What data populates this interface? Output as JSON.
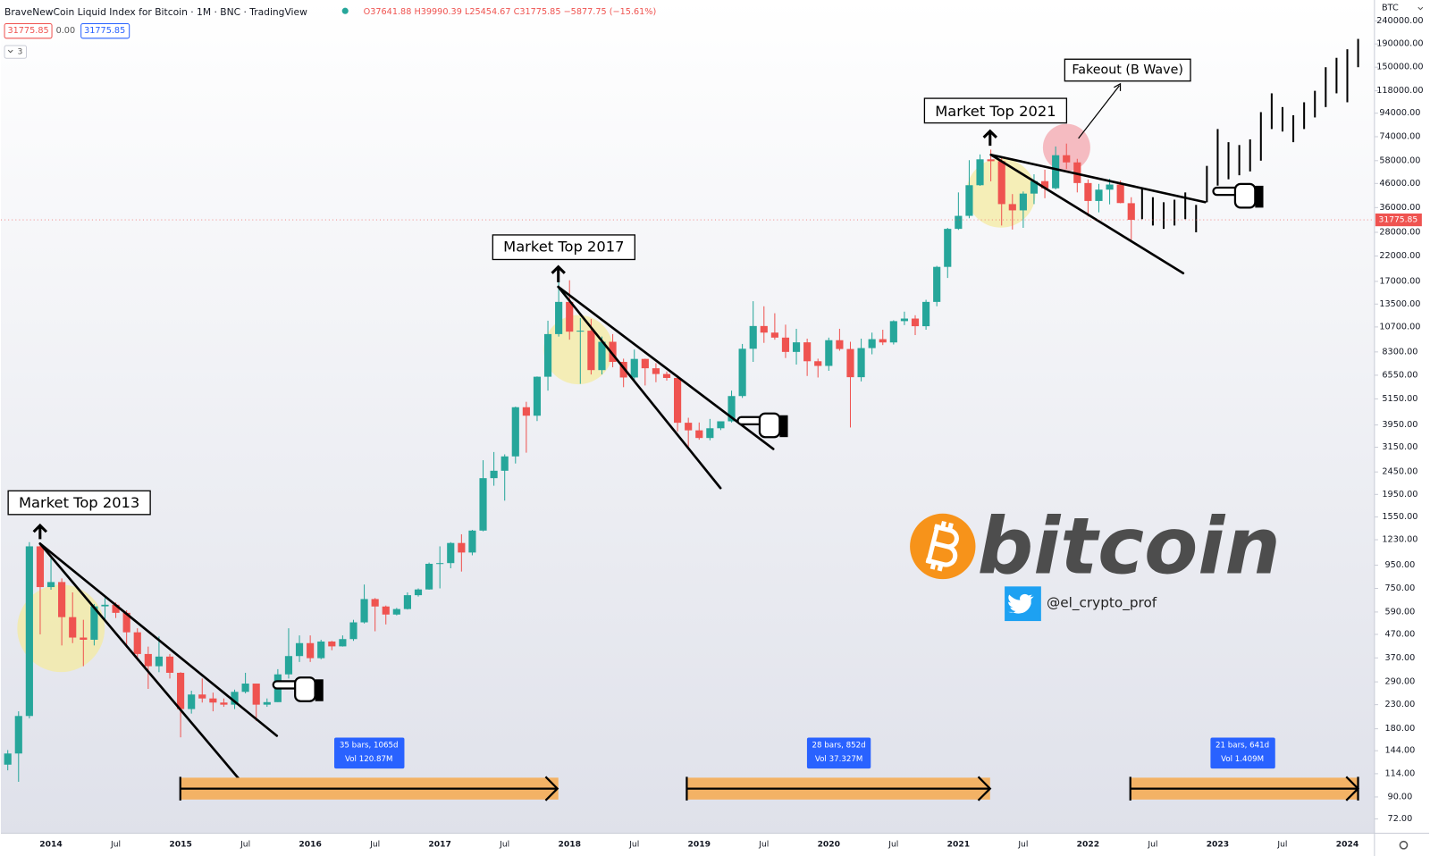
{
  "header": {
    "title": "BraveNewCoin Liquid Index for Bitcoin · 1M · BNC · TradingView",
    "open": "O37641.88",
    "high": "H39990.39",
    "low": "L25454.67",
    "close": "C31775.85",
    "change": "−5877.75 (−15.61%)"
  },
  "toolbar": {
    "bid": "31775.85",
    "spread": "0.00",
    "ask": "31775.85",
    "indicators": "3"
  },
  "overlay": {
    "brand": "bitcoin",
    "handle": "@el_crypto_prof"
  },
  "chart_data": {
    "type": "candlestick",
    "currency": "BTC",
    "last_price": 31775.85,
    "log_scale": true,
    "grid": false,
    "up_color": "#26a69a",
    "down_color": "#ef5350",
    "projection_color": "#000000",
    "annotations": [
      "Market Top 2013",
      "Market Top 2017",
      "Market Top 2021",
      "Fakeout (B Wave)"
    ],
    "ranges": [
      {
        "label": "35 bars, 1065d",
        "volume": "Vol 120.87M"
      },
      {
        "label": "28 bars, 852d",
        "volume": "Vol 37.327M"
      },
      {
        "label": "21 bars, 641d",
        "volume": "Vol 1.409M"
      }
    ],
    "categories": [
      null,
      null,
      null,
      null,
      "2014",
      null,
      null,
      null,
      null,
      null,
      "Jul",
      null,
      null,
      null,
      null,
      null,
      "2015",
      null,
      null,
      null,
      null,
      null,
      "Jul",
      null,
      null,
      null,
      null,
      null,
      "2016",
      null,
      null,
      null,
      null,
      null,
      "Jul",
      null,
      null,
      null,
      null,
      null,
      "2017",
      null,
      null,
      null,
      null,
      null,
      "Jul",
      null,
      null,
      null,
      null,
      null,
      "2018",
      null,
      null,
      null,
      null,
      null,
      "Jul",
      null,
      null,
      null,
      null,
      null,
      "2019",
      null,
      null,
      null,
      null,
      null,
      "Jul",
      null,
      null,
      null,
      null,
      null,
      "2020",
      null,
      null,
      null,
      null,
      null,
      "Jul",
      null,
      null,
      null,
      null,
      null,
      "2021",
      null,
      null,
      null,
      null,
      null,
      "Jul",
      null,
      null,
      null,
      null,
      null,
      "2022",
      null,
      null,
      null,
      null,
      null,
      "Jul",
      null,
      null,
      null,
      null,
      null,
      "2023",
      null,
      null,
      null,
      null,
      null,
      "Jul",
      null,
      null,
      null,
      null,
      null,
      "2024",
      null,
      null
    ],
    "ohlc": [
      [
        125,
        145,
        118,
        140
      ],
      [
        140,
        215,
        105,
        205
      ],
      [
        205,
        1200,
        200,
        1150
      ],
      [
        1150,
        1180,
        470,
        760
      ],
      [
        760,
        1020,
        740,
        800
      ],
      [
        800,
        830,
        420,
        560
      ],
      [
        560,
        720,
        430,
        455
      ],
      [
        455,
        545,
        340,
        445
      ],
      [
        445,
        640,
        420,
        625
      ],
      [
        625,
        680,
        540,
        635
      ],
      [
        635,
        650,
        555,
        585
      ],
      [
        585,
        600,
        410,
        480
      ],
      [
        480,
        500,
        360,
        385
      ],
      [
        385,
        415,
        270,
        340
      ],
      [
        340,
        460,
        320,
        375
      ],
      [
        375,
        385,
        300,
        318
      ],
      [
        318,
        320,
        165,
        220
      ],
      [
        220,
        265,
        210,
        255
      ],
      [
        255,
        300,
        235,
        245
      ],
      [
        245,
        260,
        215,
        235
      ],
      [
        235,
        245,
        225,
        230
      ],
      [
        230,
        268,
        220,
        262
      ],
      [
        262,
        318,
        258,
        285
      ],
      [
        285,
        285,
        195,
        230
      ],
      [
        230,
        245,
        225,
        236
      ],
      [
        236,
        330,
        236,
        313
      ],
      [
        313,
        500,
        300,
        377
      ],
      [
        377,
        465,
        355,
        430
      ],
      [
        430,
        465,
        355,
        369
      ],
      [
        369,
        445,
        365,
        437
      ],
      [
        437,
        440,
        400,
        416
      ],
      [
        416,
        465,
        415,
        448
      ],
      [
        448,
        545,
        440,
        531
      ],
      [
        531,
        780,
        525,
        673
      ],
      [
        673,
        680,
        485,
        624
      ],
      [
        624,
        630,
        520,
        575
      ],
      [
        575,
        615,
        570,
        608
      ],
      [
        608,
        720,
        605,
        700
      ],
      [
        700,
        750,
        690,
        742
      ],
      [
        742,
        975,
        740,
        963
      ],
      [
        963,
        1150,
        750,
        970
      ],
      [
        970,
        1200,
        920,
        1190
      ],
      [
        1190,
        1300,
        890,
        1080
      ],
      [
        1080,
        1360,
        1050,
        1350
      ],
      [
        1350,
        2760,
        1340,
        2300
      ],
      [
        2300,
        3000,
        2130,
        2480
      ],
      [
        2480,
        2930,
        1830,
        2870
      ],
      [
        2870,
        4760,
        2670,
        4730
      ],
      [
        4730,
        5000,
        2980,
        4340
      ],
      [
        4340,
        6470,
        4110,
        6450
      ],
      [
        6450,
        11400,
        5600,
        9950
      ],
      [
        9950,
        19800,
        9700,
        13800
      ],
      [
        13800,
        17200,
        9400,
        10200
      ],
      [
        10200,
        11700,
        6000,
        10300
      ],
      [
        10300,
        11600,
        6600,
        6900
      ],
      [
        6900,
        9700,
        6600,
        9200
      ],
      [
        9200,
        9950,
        7100,
        7500
      ],
      [
        7500,
        7750,
        5800,
        6400
      ],
      [
        6400,
        8500,
        6100,
        7730
      ],
      [
        7730,
        7750,
        5900,
        7030
      ],
      [
        7030,
        7400,
        6100,
        6630
      ],
      [
        6630,
        6800,
        6200,
        6370
      ],
      [
        6370,
        6550,
        3700,
        4040
      ],
      [
        4040,
        4250,
        3150,
        3740
      ],
      [
        3740,
        4050,
        3400,
        3460
      ],
      [
        3460,
        4200,
        3380,
        3820
      ],
      [
        3820,
        4100,
        3750,
        4100
      ],
      [
        4100,
        5600,
        4050,
        5300
      ],
      [
        5300,
        9000,
        5200,
        8570
      ],
      [
        8570,
        13900,
        7500,
        10800
      ],
      [
        10800,
        13200,
        9100,
        10100
      ],
      [
        10100,
        12300,
        9400,
        9600
      ],
      [
        9600,
        10950,
        7800,
        8300
      ],
      [
        8300,
        10500,
        7300,
        9150
      ],
      [
        9150,
        9500,
        6500,
        7550
      ],
      [
        7550,
        7750,
        6400,
        7200
      ],
      [
        7200,
        9600,
        6850,
        9350
      ],
      [
        9350,
        10500,
        8400,
        8550
      ],
      [
        8550,
        9200,
        3850,
        6420
      ],
      [
        6420,
        9500,
        6150,
        8630
      ],
      [
        8630,
        10100,
        8100,
        9450
      ],
      [
        9450,
        10400,
        8900,
        9140
      ],
      [
        9140,
        11450,
        8950,
        11350
      ],
      [
        11350,
        12500,
        10900,
        11650
      ],
      [
        11650,
        12050,
        9850,
        10780
      ],
      [
        10780,
        14100,
        10400,
        13800
      ],
      [
        13800,
        19900,
        13200,
        19700
      ],
      [
        19700,
        29300,
        17600,
        29000
      ],
      [
        29000,
        42000,
        28700,
        33100
      ],
      [
        33100,
        58300,
        32300,
        45200
      ],
      [
        45200,
        61800,
        44900,
        58800
      ],
      [
        58800,
        64900,
        47000,
        57700
      ],
      [
        57700,
        59600,
        30000,
        37300
      ],
      [
        37300,
        41300,
        28800,
        35000
      ],
      [
        35000,
        42400,
        29300,
        41500
      ],
      [
        41500,
        50500,
        37300,
        47100
      ],
      [
        47100,
        52900,
        39600,
        43800
      ],
      [
        43800,
        67000,
        43300,
        61300
      ],
      [
        61300,
        69000,
        53300,
        57000
      ],
      [
        57000,
        59100,
        42000,
        46200
      ],
      [
        46200,
        47900,
        32900,
        38500
      ],
      [
        38500,
        45800,
        34300,
        43200
      ],
      [
        43200,
        48200,
        37200,
        45500
      ],
      [
        45500,
        47400,
        37600,
        37700
      ],
      [
        37641.88,
        39990.39,
        25454.67,
        31775.85
      ],
      null,
      null,
      null,
      null,
      null,
      null,
      null,
      null,
      null,
      null,
      null,
      null,
      null,
      null,
      null,
      null,
      null,
      null,
      null,
      null,
      null,
      null
    ],
    "projection": [
      null,
      null,
      null,
      null,
      null,
      null,
      null,
      null,
      null,
      null,
      null,
      null,
      null,
      null,
      null,
      null,
      null,
      null,
      null,
      null,
      null,
      null,
      null,
      null,
      null,
      null,
      null,
      null,
      null,
      null,
      null,
      null,
      null,
      null,
      null,
      null,
      null,
      null,
      null,
      null,
      null,
      null,
      null,
      null,
      null,
      null,
      null,
      null,
      null,
      null,
      null,
      null,
      null,
      null,
      null,
      null,
      null,
      null,
      null,
      null,
      null,
      null,
      null,
      null,
      null,
      null,
      null,
      null,
      null,
      null,
      null,
      null,
      null,
      null,
      null,
      null,
      null,
      null,
      null,
      null,
      null,
      null,
      null,
      null,
      null,
      null,
      null,
      null,
      null,
      null,
      null,
      null,
      null,
      null,
      null,
      null,
      null,
      null,
      null,
      null,
      null,
      null,
      null,
      null,
      null,
      [
        32000,
        44000
      ],
      [
        30000,
        40000
      ],
      [
        29000,
        38000
      ],
      [
        30000,
        39000
      ],
      [
        32000,
        42000
      ],
      [
        28000,
        37000
      ],
      [
        38000,
        55000
      ],
      [
        45000,
        80000
      ],
      [
        48000,
        70000
      ],
      [
        50000,
        68000
      ],
      [
        52000,
        72000
      ],
      [
        58000,
        95000
      ],
      [
        80000,
        115000
      ],
      [
        78000,
        100000
      ],
      [
        70000,
        92000
      ],
      [
        80000,
        105000
      ],
      [
        90000,
        118000
      ],
      [
        100000,
        150000
      ],
      [
        115000,
        165000
      ],
      [
        105000,
        180000
      ],
      [
        150000,
        200000
      ],
      null
    ],
    "ylim": [
      64,
      297000
    ],
    "yticks": [
      {
        "value": 240000,
        "label": "240000.00"
      },
      {
        "value": 190000,
        "label": "190000.00"
      },
      {
        "value": 150000,
        "label": "150000.00"
      },
      {
        "value": 118000,
        "label": "118000.00"
      },
      {
        "value": 94000,
        "label": "94000.00"
      },
      {
        "value": 74000,
        "label": "74000.00"
      },
      {
        "value": 58000,
        "label": "58000.00"
      },
      {
        "value": 46000,
        "label": "46000.00"
      },
      {
        "value": 36000,
        "label": "36000.00"
      },
      {
        "value": 28000,
        "label": "28000.00"
      },
      {
        "value": 22000,
        "label": "22000.00"
      },
      {
        "value": 17000,
        "label": "17000.00"
      },
      {
        "value": 13500,
        "label": "13500.00"
      },
      {
        "value": 10700,
        "label": "10700.00"
      },
      {
        "value": 8300,
        "label": "8300.00"
      },
      {
        "value": 6550,
        "label": "6550.00"
      },
      {
        "value": 5150,
        "label": "5150.00"
      },
      {
        "value": 3950,
        "label": "3950.00"
      },
      {
        "value": 3150,
        "label": "3150.00"
      },
      {
        "value": 2450,
        "label": "2450.00"
      },
      {
        "value": 1950,
        "label": "1950.00"
      },
      {
        "value": 1550,
        "label": "1550.00"
      },
      {
        "value": 1230,
        "label": "1230.00"
      },
      {
        "value": 950,
        "label": "950.00"
      },
      {
        "value": 750,
        "label": "750.00"
      },
      {
        "value": 590,
        "label": "590.00"
      },
      {
        "value": 470,
        "label": "470.00"
      },
      {
        "value": 370,
        "label": "370.00"
      },
      {
        "value": 290,
        "label": "290.00"
      },
      {
        "value": 230,
        "label": "230.00"
      },
      {
        "value": 180,
        "label": "180.00"
      },
      {
        "value": 144,
        "label": "144.00"
      },
      {
        "value": 114,
        "label": "114.00"
      },
      {
        "value": 90,
        "label": "90.00"
      },
      {
        "value": 72,
        "label": "72.00"
      }
    ]
  }
}
